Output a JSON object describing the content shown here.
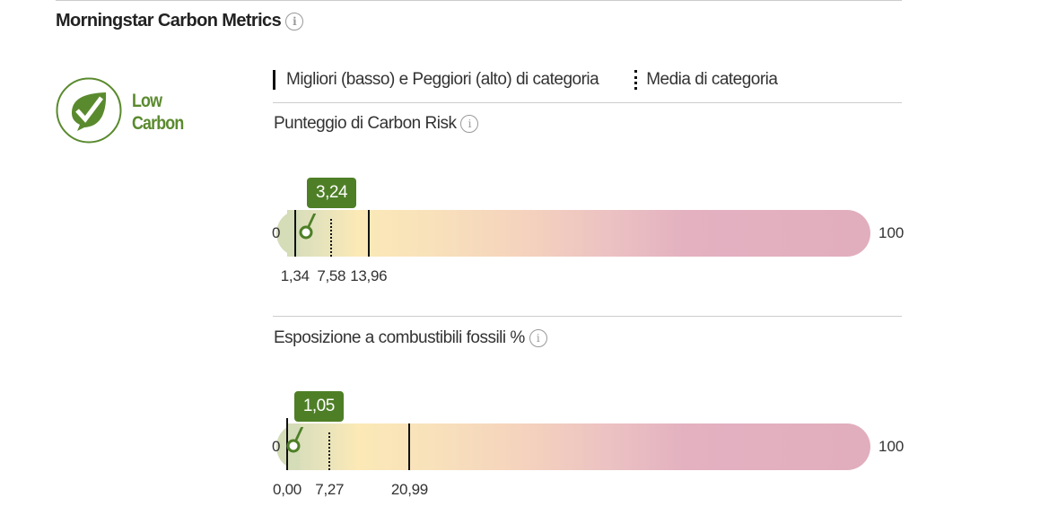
{
  "header": {
    "title": "Morningstar Carbon Metrics",
    "info_icon": "info-icon"
  },
  "badge": {
    "line1": "Low",
    "line2": "Carbon",
    "icon": "leaf-check-icon",
    "color": "#5a8a2e"
  },
  "legend": {
    "best_worst": "Migliori (basso) e Peggiori (alto) di categoria",
    "average": "Media di categoria"
  },
  "metrics": [
    {
      "label": "Punteggio di Carbon Risk",
      "min_label": "0",
      "max_label": "100",
      "min": 0,
      "max": 100,
      "value": 3.24,
      "value_label": "3,24",
      "best": 1.34,
      "best_label": "1,34",
      "average": 7.58,
      "average_label": "7,58",
      "worst": 13.96,
      "worst_label": "13,96"
    },
    {
      "label": "Esposizione a combustibili fossili %",
      "min_label": "0",
      "max_label": "100",
      "min": 0,
      "max": 100,
      "value": 1.05,
      "value_label": "1,05",
      "best": 0.0,
      "best_label": "0,00",
      "average": 7.27,
      "average_label": "7,27",
      "worst": 20.99,
      "worst_label": "20,99"
    }
  ],
  "colors": {
    "accent": "#4e7f27",
    "bar_low": "#d4dcb8",
    "bar_mid": "#fbe9b6",
    "bar_high": "#e1aebe"
  }
}
